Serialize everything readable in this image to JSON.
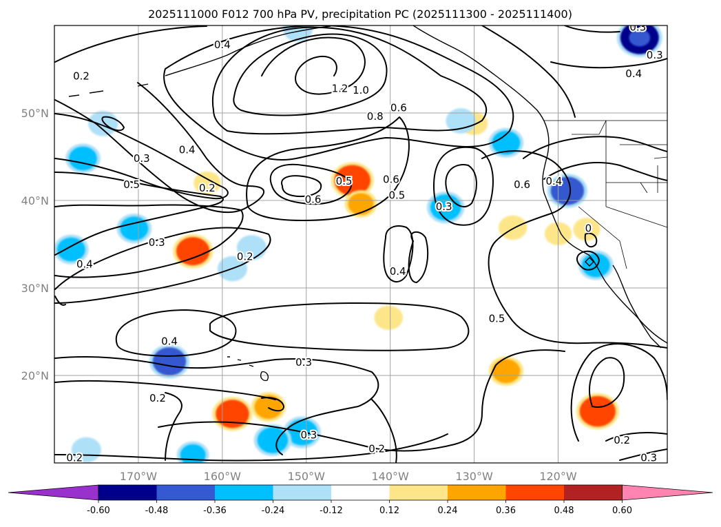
{
  "chart_data": {
    "type": "contour_map",
    "title": "2025111000 F012 700 hPa PV, precipitation PC (2025111300 - 2025111400)",
    "projection": "lat-lon",
    "lon_range": [
      -180,
      -107
    ],
    "lat_range": [
      10,
      60
    ],
    "grid": true,
    "lon_ticks": [
      {
        "value": -170,
        "label": "170°W"
      },
      {
        "value": -160,
        "label": "160°W"
      },
      {
        "value": -150,
        "label": "150°W"
      },
      {
        "value": -140,
        "label": "140°W"
      },
      {
        "value": -130,
        "label": "130°W"
      },
      {
        "value": -120,
        "label": "120°W"
      }
    ],
    "lat_ticks": [
      {
        "value": 20,
        "label": "20°N"
      },
      {
        "value": 30,
        "label": "30°N"
      },
      {
        "value": 40,
        "label": "40°N"
      },
      {
        "value": 50,
        "label": "50°N"
      }
    ],
    "pv_contour_labels": [
      {
        "text": "0.4",
        "lon": -160,
        "lat": 57.8
      },
      {
        "text": "0.2",
        "lon": -176.8,
        "lat": 54.2
      },
      {
        "text": "1.2",
        "lon": -146,
        "lat": 52.8
      },
      {
        "text": "1.0",
        "lon": -143.5,
        "lat": 52.6
      },
      {
        "text": "0.8",
        "lon": -141.8,
        "lat": 49.6
      },
      {
        "text": "0.6",
        "lon": -139,
        "lat": 50.6
      },
      {
        "text": "0.4",
        "lon": -164.2,
        "lat": 45.8
      },
      {
        "text": "0.3",
        "lon": -169.6,
        "lat": 44.8
      },
      {
        "text": "0.5",
        "lon": -170.8,
        "lat": 41.8
      },
      {
        "text": "0.2",
        "lon": -161.8,
        "lat": 41.4
      },
      {
        "text": "0.5",
        "lon": -145.5,
        "lat": 42.2
      },
      {
        "text": "0.6",
        "lon": -139.9,
        "lat": 42.4
      },
      {
        "text": "0.5",
        "lon": -139.2,
        "lat": 40.6
      },
      {
        "text": "0.6",
        "lon": -149.2,
        "lat": 40.1
      },
      {
        "text": "0.3",
        "lon": -133.6,
        "lat": 39.3
      },
      {
        "text": "0.6",
        "lon": -124.3,
        "lat": 41.8
      },
      {
        "text": "0.4",
        "lon": -120.5,
        "lat": 42.2
      },
      {
        "text": "0.3",
        "lon": -167.8,
        "lat": 35.2
      },
      {
        "text": "0.2",
        "lon": -157.3,
        "lat": 33.6
      },
      {
        "text": "0.4",
        "lon": -176.4,
        "lat": 32.7
      },
      {
        "text": "0.4",
        "lon": -139.1,
        "lat": 31.9
      },
      {
        "text": "0.5",
        "lon": -127.3,
        "lat": 26.5
      },
      {
        "text": "0.4",
        "lon": -166.3,
        "lat": 23.9
      },
      {
        "text": "0.3",
        "lon": -150.3,
        "lat": 21.5
      },
      {
        "text": "0.2",
        "lon": -167.7,
        "lat": 17.4
      },
      {
        "text": "0.3",
        "lon": -149.7,
        "lat": 13.2
      },
      {
        "text": "0.2",
        "lon": -141.6,
        "lat": 11.6
      },
      {
        "text": "0.2",
        "lon": -177.6,
        "lat": 10.6
      },
      {
        "text": "0.2",
        "lon": -112.4,
        "lat": 12.6
      },
      {
        "text": "0.3",
        "lon": -109.2,
        "lat": 10.6
      },
      {
        "text": "0.3",
        "lon": -108.5,
        "lat": 56.6
      },
      {
        "text": "0.4",
        "lon": -111,
        "lat": 54.5
      },
      {
        "text": "0.3",
        "lon": -110.5,
        "lat": 59.8
      },
      {
        "text": "0",
        "lon": -116.4,
        "lat": 36.8
      }
    ],
    "precip_pc_shading": [
      {
        "lon": -144.5,
        "lat": 42.3,
        "value": 0.45
      },
      {
        "lon": -143.5,
        "lat": 39.6,
        "value": 0.25
      },
      {
        "lon": -163.5,
        "lat": 34.2,
        "value": 0.4
      },
      {
        "lon": -158.8,
        "lat": 15.6,
        "value": 0.4
      },
      {
        "lon": -154.5,
        "lat": 16.4,
        "value": 0.3
      },
      {
        "lon": -115.3,
        "lat": 15.9,
        "value": 0.45
      },
      {
        "lon": -126.2,
        "lat": 20.5,
        "value": 0.3
      },
      {
        "lon": -140.2,
        "lat": 26.6,
        "value": 0.18
      },
      {
        "lon": -125.4,
        "lat": 36.9,
        "value": 0.18
      },
      {
        "lon": -116.6,
        "lat": 36.7,
        "value": 0.15
      },
      {
        "lon": -120,
        "lat": 36.2,
        "value": 0.15
      },
      {
        "lon": -130,
        "lat": 48.8,
        "value": 0.15
      },
      {
        "lon": -176.6,
        "lat": 44.8,
        "value": -0.3
      },
      {
        "lon": -174.2,
        "lat": 48.8,
        "value": -0.2
      },
      {
        "lon": -178,
        "lat": 34.4,
        "value": -0.3
      },
      {
        "lon": -170.5,
        "lat": 36.8,
        "value": -0.3
      },
      {
        "lon": -166.3,
        "lat": 21.6,
        "value": -0.4
      },
      {
        "lon": -163.5,
        "lat": 10.9,
        "value": -0.25
      },
      {
        "lon": -176.2,
        "lat": 11.5,
        "value": -0.2
      },
      {
        "lon": -150.5,
        "lat": 13.5,
        "value": -0.35
      },
      {
        "lon": -154,
        "lat": 12.6,
        "value": -0.35
      },
      {
        "lon": -133.4,
        "lat": 39.2,
        "value": -0.35
      },
      {
        "lon": -126.2,
        "lat": 46.6,
        "value": -0.3
      },
      {
        "lon": -118.9,
        "lat": 41.1,
        "value": -0.4
      },
      {
        "lon": -115.5,
        "lat": 32.6,
        "value": -0.3
      },
      {
        "lon": -156.5,
        "lat": 34.6,
        "value": -0.2
      },
      {
        "lon": -158.8,
        "lat": 32.2,
        "value": -0.2
      },
      {
        "lon": -110.3,
        "lat": 58.6,
        "value": -0.5
      },
      {
        "lon": -151,
        "lat": 59.6,
        "value": -0.2
      },
      {
        "lon": -131.6,
        "lat": 49.1,
        "value": -0.2
      },
      {
        "lon": -161.8,
        "lat": 42,
        "value": 0.15
      }
    ],
    "colorbar": {
      "ticks": [
        "-0.60",
        "-0.48",
        "-0.36",
        "-0.24",
        "-0.12",
        "0.12",
        "0.24",
        "0.36",
        "0.48",
        "0.60"
      ],
      "colors": [
        "#9932cc",
        "#00008b",
        "#3559d0",
        "#00bfff",
        "#aee0f8",
        "#ffffff",
        "#fde68a",
        "#ffa500",
        "#ff4500",
        "#b22222",
        "#ff85b0"
      ],
      "extend": "both"
    }
  }
}
